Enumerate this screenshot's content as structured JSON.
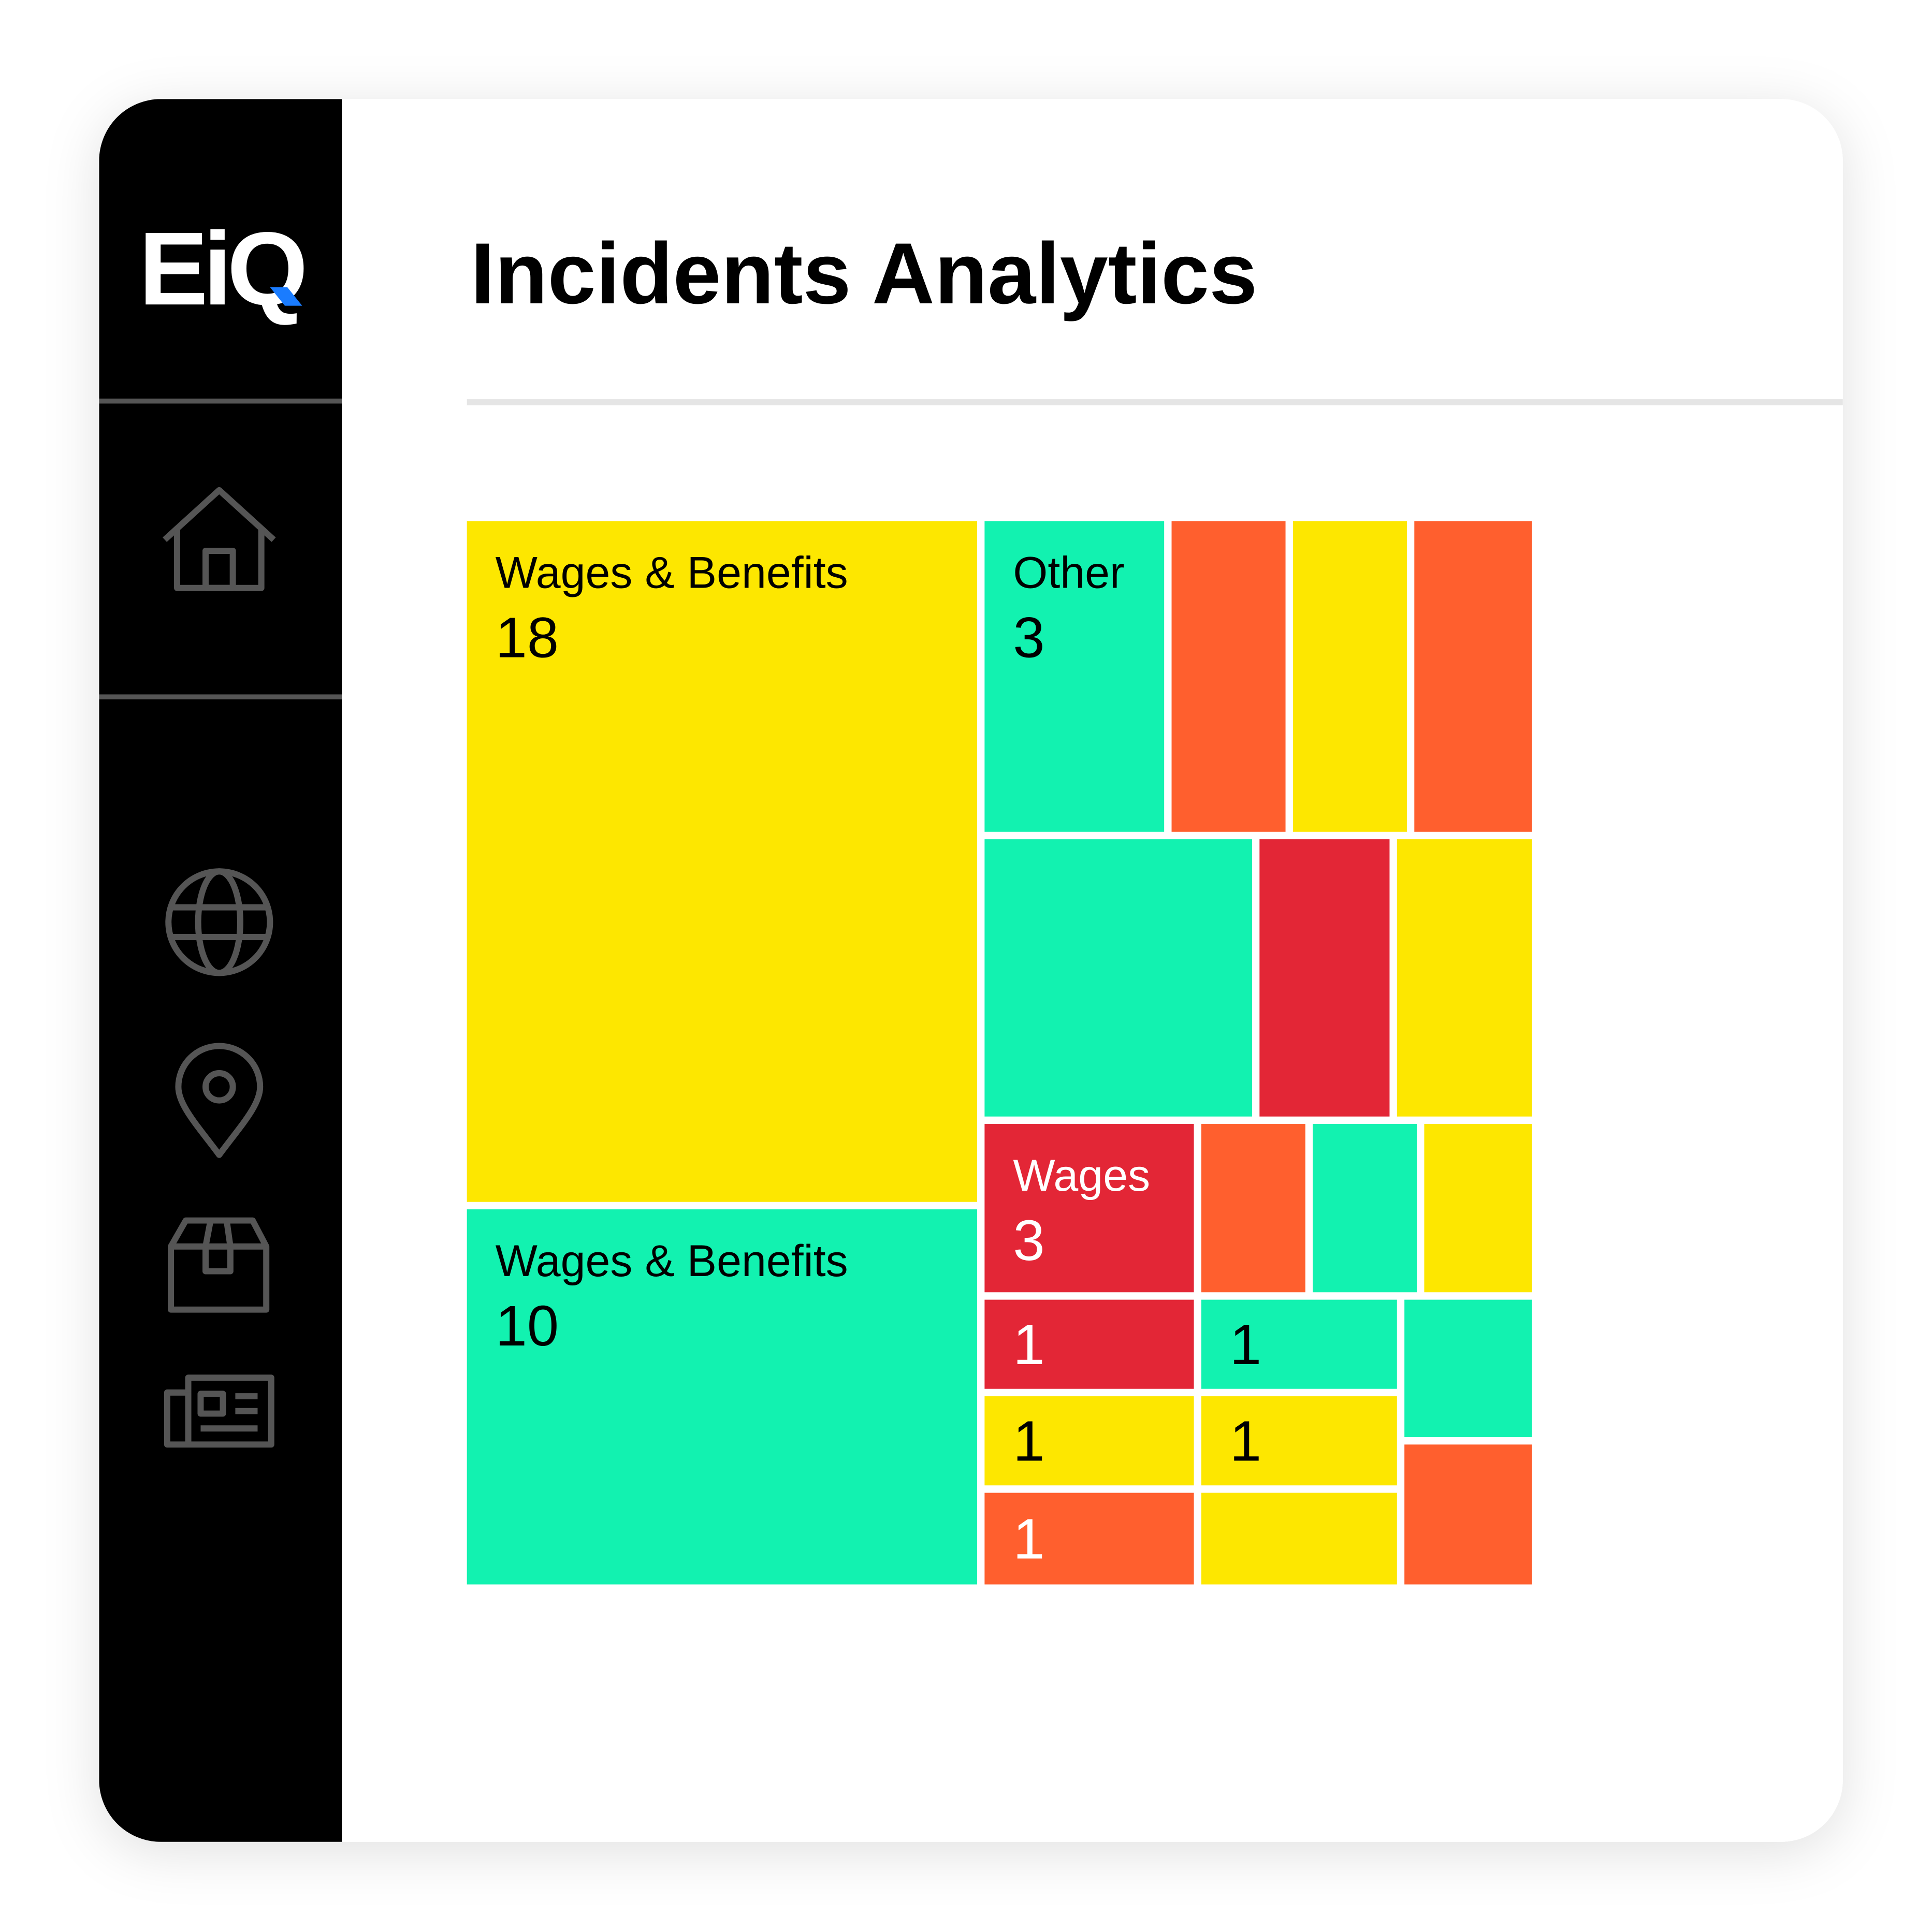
{
  "sidebar": {
    "logo": "EiQ"
  },
  "header": {
    "title": "Incidents Analytics"
  },
  "treemap": {
    "cells": [
      {
        "label": "Wages & Benefits",
        "value": 18
      },
      {
        "label": "Wages & Benefits",
        "value": 10
      },
      {
        "label": "Other",
        "value": 3
      },
      {
        "label": "Wages",
        "value": 3
      },
      {
        "value": 1
      },
      {
        "value": 1
      },
      {
        "value": 1
      },
      {
        "value": 1
      },
      {
        "value": 1
      }
    ]
  }
}
